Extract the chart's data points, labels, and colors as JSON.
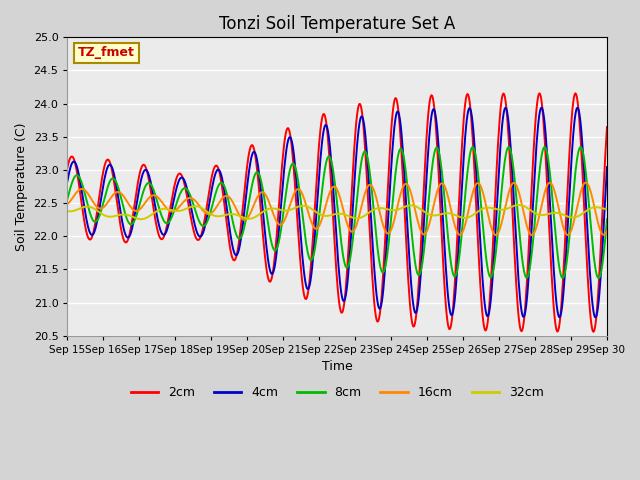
{
  "title": "Tonzi Soil Temperature Set A",
  "xlabel": "Time",
  "ylabel": "Soil Temperature (C)",
  "annotation": "TZ_fmet",
  "ylim": [
    20.5,
    25.0
  ],
  "yticks": [
    20.5,
    21.0,
    21.5,
    22.0,
    22.5,
    23.0,
    23.5,
    24.0,
    24.5,
    25.0
  ],
  "date_labels": [
    "Sep 15",
    "Sep 16",
    "Sep 17",
    "Sep 18",
    "Sep 19",
    "Sep 20",
    "Sep 21",
    "Sep 22",
    "Sep 23",
    "Sep 24",
    "Sep 25",
    "Sep 26",
    "Sep 27",
    "Sep 28",
    "Sep 29",
    "Sep 30"
  ],
  "colors": {
    "2cm": "#ff0000",
    "4cm": "#0000cc",
    "8cm": "#00bb00",
    "16cm": "#ff8800",
    "32cm": "#cccc00"
  },
  "line_labels": [
    "2cm",
    "4cm",
    "8cm",
    "16cm",
    "32cm"
  ],
  "fig_bg_color": "#d4d4d4",
  "plot_bg_color": "#ebebeb"
}
